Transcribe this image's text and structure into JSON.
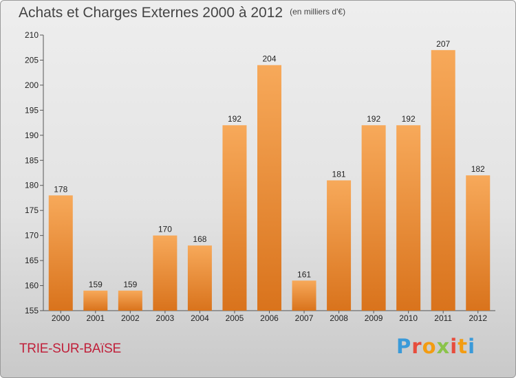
{
  "header": {
    "title": "Achats et Charges Externes 2000 à 2012",
    "unit": "(en milliers d'€)"
  },
  "footer": {
    "city": "TRIE-SUR-BAïSE",
    "logo_letters": [
      "P",
      "r",
      "o",
      "x",
      "i",
      "t",
      "i"
    ],
    "logo_colors": [
      "#3a9ad9",
      "#e74c3c",
      "#f39c12",
      "#8bc34a",
      "#e74c3c",
      "#f39c12",
      "#3a9ad9"
    ]
  },
  "chart_data": {
    "type": "bar",
    "title": "Achats et Charges Externes 2000 à 2012",
    "subtitle": "(en milliers d'€)",
    "categories": [
      "2000",
      "2001",
      "2002",
      "2003",
      "2004",
      "2005",
      "2006",
      "2007",
      "2008",
      "2009",
      "2010",
      "2011",
      "2012"
    ],
    "values": [
      178,
      159,
      159,
      170,
      168,
      192,
      204,
      161,
      181,
      192,
      192,
      207,
      182
    ],
    "ylim": [
      155,
      210
    ],
    "yticks": [
      155,
      160,
      165,
      170,
      175,
      180,
      185,
      190,
      195,
      200,
      205,
      210
    ],
    "xlabel": "",
    "ylabel": "",
    "grid": false,
    "legend": "none",
    "bar_color_top": "#f7a95a",
    "bar_color_bottom": "#d9731c"
  }
}
